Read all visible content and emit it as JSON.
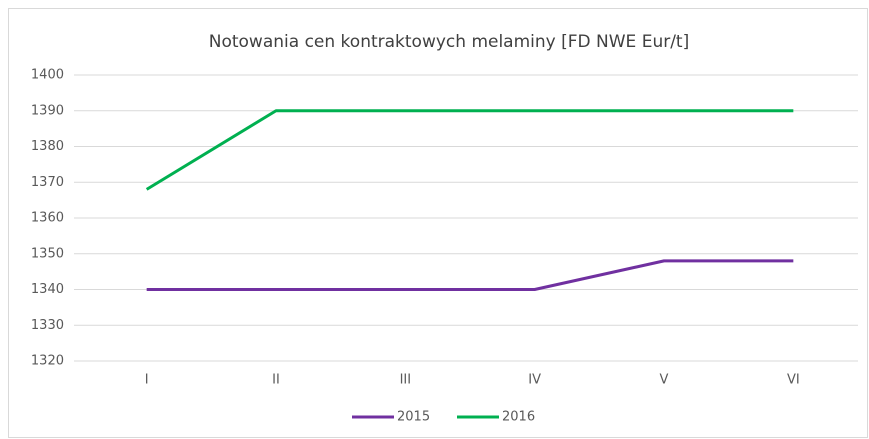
{
  "chart_data": {
    "type": "line",
    "title": "Notowania cen kontraktowych melaminy [FD NWE Eur/t]",
    "categories": [
      "I",
      "II",
      "III",
      "IV",
      "V",
      "VI"
    ],
    "series": [
      {
        "name": "2015",
        "color": "#7030a0",
        "values": [
          1340,
          1340,
          1340,
          1340,
          1348,
          1348
        ]
      },
      {
        "name": "2016",
        "color": "#00b050",
        "values": [
          1368,
          1390,
          1390,
          1390,
          1390,
          1390
        ]
      }
    ],
    "ylim": [
      1320,
      1400
    ],
    "yticks": [
      1320,
      1330,
      1340,
      1350,
      1360,
      1370,
      1380,
      1390,
      1400
    ],
    "grid": true,
    "legend": "bottom"
  }
}
